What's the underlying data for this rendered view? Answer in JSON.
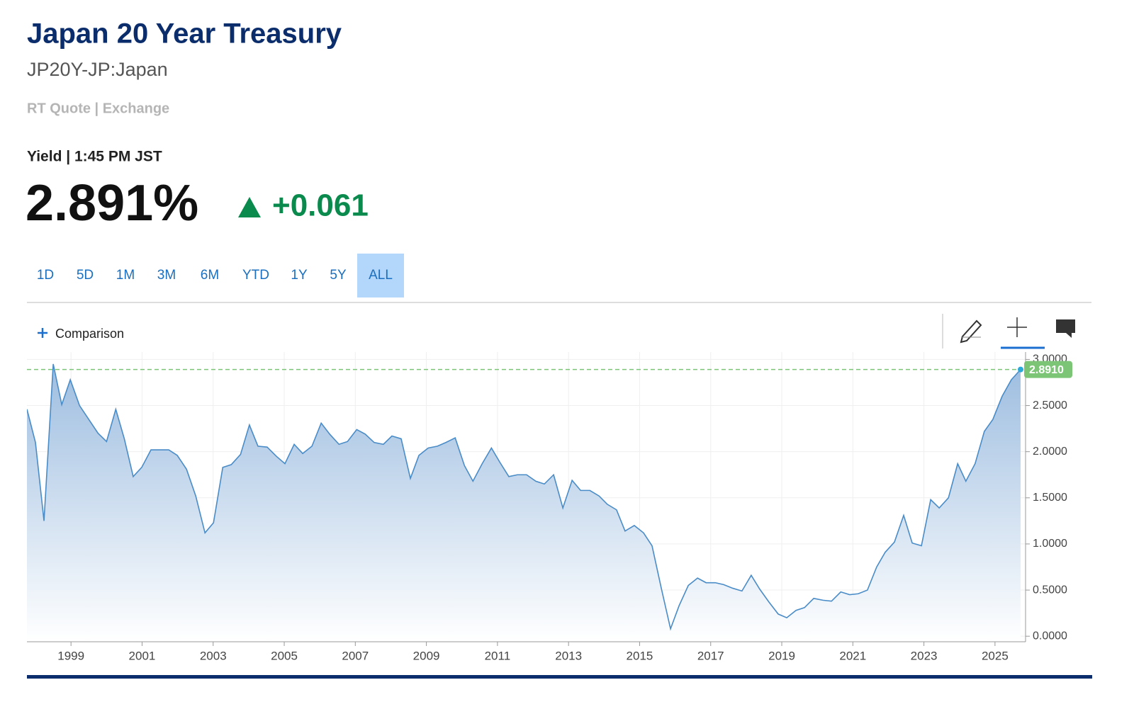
{
  "header": {
    "title": "Japan 20 Year Treasury",
    "symbol": "JP20Y-JP:Japan",
    "source": "RT Quote | Exchange"
  },
  "quote": {
    "label": "Yield | 1:45 PM JST",
    "price": "2.891%",
    "change": "+0.061"
  },
  "range_tabs": [
    "1D",
    "5D",
    "1M",
    "3M",
    "6M",
    "YTD",
    "1Y",
    "5Y",
    "ALL"
  ],
  "active_tab": 8,
  "toolbar": {
    "comparison": "Comparison"
  },
  "chart_data": {
    "type": "area",
    "x": [
      1997.76,
      1998.0,
      1998.24,
      1998.5,
      1998.74,
      1998.98,
      1999.24,
      1999.76,
      2000.0,
      2000.26,
      2000.5,
      2000.75,
      2000.99,
      2001.25,
      2001.75,
      2001.99,
      2002.25,
      2002.51,
      2002.77,
      2003.01,
      2003.27,
      2003.51,
      2003.77,
      2004.02,
      2004.26,
      2004.52,
      2004.78,
      2005.02,
      2005.28,
      2005.52,
      2005.78,
      2006.04,
      2006.28,
      2006.54,
      2006.78,
      2007.04,
      2007.28,
      2007.53,
      2007.79,
      2008.03,
      2008.29,
      2008.55,
      2008.79,
      2009.05,
      2009.31,
      2009.55,
      2009.81,
      2010.07,
      2010.31,
      2010.57,
      2010.83,
      2011.06,
      2011.32,
      2011.56,
      2011.82,
      2012.08,
      2012.32,
      2012.58,
      2012.84,
      2013.1,
      2013.34,
      2013.6,
      2013.86,
      2014.09,
      2014.35,
      2014.59,
      2014.85,
      2015.11,
      2015.35,
      2015.61,
      2015.87,
      2016.11,
      2016.37,
      2016.63,
      2016.87,
      2017.13,
      2017.36,
      2017.62,
      2017.88,
      2018.14,
      2018.38,
      2018.64,
      2018.9,
      2019.14,
      2019.4,
      2019.64,
      2019.9,
      2020.16,
      2020.4,
      2020.66,
      2020.91,
      2021.15,
      2021.41,
      2021.67,
      2021.91,
      2022.17,
      2022.43,
      2022.67,
      2022.93,
      2023.19,
      2023.43,
      2023.69,
      2023.95,
      2024.18,
      2024.44,
      2024.7,
      2024.94,
      2025.2,
      2025.46,
      2025.72
    ],
    "values": [
      2.46,
      2.1,
      1.25,
      2.95,
      2.51,
      2.78,
      2.5,
      2.2,
      2.11,
      2.46,
      2.14,
      1.73,
      1.83,
      2.02,
      2.02,
      1.96,
      1.81,
      1.52,
      1.12,
      1.23,
      1.83,
      1.86,
      1.97,
      2.29,
      2.06,
      2.05,
      1.95,
      1.87,
      2.08,
      1.98,
      2.06,
      2.31,
      2.19,
      2.08,
      2.11,
      2.24,
      2.19,
      2.1,
      2.08,
      2.17,
      2.14,
      1.71,
      1.96,
      2.04,
      2.06,
      2.1,
      2.15,
      1.85,
      1.68,
      1.87,
      2.04,
      1.89,
      1.73,
      1.75,
      1.75,
      1.68,
      1.65,
      1.75,
      1.39,
      1.69,
      1.58,
      1.58,
      1.52,
      1.43,
      1.37,
      1.14,
      1.2,
      1.12,
      0.98,
      0.52,
      0.08,
      0.33,
      0.55,
      0.63,
      0.58,
      0.58,
      0.56,
      0.52,
      0.49,
      0.66,
      0.51,
      0.37,
      0.24,
      0.2,
      0.28,
      0.31,
      0.41,
      0.39,
      0.38,
      0.48,
      0.45,
      0.46,
      0.5,
      0.75,
      0.91,
      1.02,
      1.31,
      1.01,
      0.98,
      1.48,
      1.39,
      1.5,
      1.87,
      1.68,
      1.87,
      2.22,
      2.35,
      2.6,
      2.78,
      2.891
    ],
    "color": "#4a8cc7",
    "xlim": [
      1997.76,
      2025.86
    ],
    "ylim": [
      -0.06,
      3.08
    ],
    "xticks": [
      1999,
      2001,
      2003,
      2005,
      2007,
      2009,
      2011,
      2013,
      2015,
      2017,
      2019,
      2021,
      2023,
      2025
    ],
    "yticks": [
      {
        "value": 0,
        "label": "0.0000"
      },
      {
        "value": 0.5,
        "label": "0.5000"
      },
      {
        "value": 1,
        "label": "1.0000"
      },
      {
        "value": 1.5,
        "label": "1.5000"
      },
      {
        "value": 2,
        "label": "2.0000"
      },
      {
        "value": 2.5,
        "label": "2.5000"
      },
      {
        "value": 3,
        "label": "3.0000"
      }
    ],
    "grid": true,
    "reference_line": {
      "value": 2.891,
      "label": "2.8910",
      "color": "#7cc576"
    }
  }
}
